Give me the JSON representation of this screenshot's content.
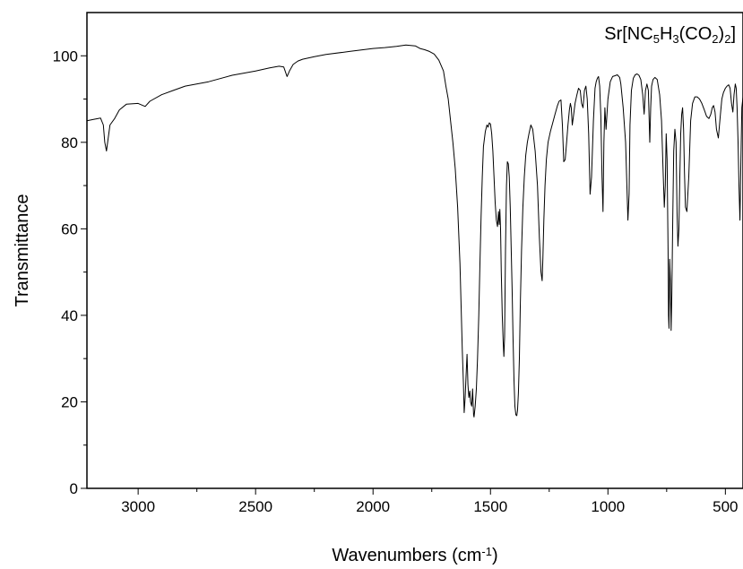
{
  "chart_data": {
    "type": "line",
    "title_parts": [
      {
        "t": "Sr[NC",
        "sub": false
      },
      {
        "t": "5",
        "sub": true
      },
      {
        "t": "H",
        "sub": false
      },
      {
        "t": "3",
        "sub": true
      },
      {
        "t": "(CO",
        "sub": false
      },
      {
        "t": "2",
        "sub": true
      },
      {
        "t": ")",
        "sub": false
      },
      {
        "t": "2",
        "sub": true
      },
      {
        "t": "]",
        "sub": false
      }
    ],
    "xlabel_parts": [
      {
        "t": "Wavenumbers (cm",
        "sup": false
      },
      {
        "t": "-1",
        "sup": true
      },
      {
        "t": ")",
        "sup": false
      }
    ],
    "ylabel": "Transmittance",
    "xlim": [
      3218,
      425
    ],
    "ylim": [
      0,
      110
    ],
    "x_ticks": [
      3000,
      2500,
      2000,
      1500,
      1000,
      500
    ],
    "x_tick_labels": [
      "3000",
      "2500",
      "2000",
      "1500",
      "1000",
      "500"
    ],
    "y_ticks": [
      0,
      20,
      40,
      60,
      80,
      100
    ],
    "y_tick_labels": [
      "0",
      "20",
      "40",
      "60",
      "80",
      "100"
    ],
    "series": [
      {
        "color": "#000000",
        "x": [
          3218,
          3190,
          3160,
          3148,
          3142,
          3135,
          3120,
          3100,
          3080,
          3050,
          3000,
          2970,
          2950,
          2900,
          2850,
          2800,
          2700,
          2600,
          2500,
          2440,
          2400,
          2380,
          2366,
          2355,
          2340,
          2320,
          2300,
          2250,
          2200,
          2100,
          2000,
          1950,
          1900,
          1860,
          1820,
          1800,
          1780,
          1760,
          1740,
          1720,
          1700,
          1690,
          1680,
          1670,
          1660,
          1650,
          1640,
          1630,
          1625,
          1620,
          1615,
          1612,
          1608,
          1604,
          1600,
          1596,
          1592,
          1588,
          1585,
          1580,
          1576,
          1572,
          1570,
          1565,
          1560,
          1555,
          1550,
          1545,
          1540,
          1535,
          1530,
          1522,
          1515,
          1510,
          1505,
          1500,
          1495,
          1490,
          1485,
          1480,
          1475,
          1470,
          1466,
          1463,
          1460,
          1457,
          1454,
          1450,
          1446,
          1443,
          1440,
          1436,
          1432,
          1428,
          1424,
          1420,
          1416,
          1412,
          1408,
          1404,
          1400,
          1396,
          1392,
          1388,
          1385,
          1381,
          1377,
          1373,
          1368,
          1362,
          1356,
          1350,
          1343,
          1336,
          1328,
          1320,
          1310,
          1300,
          1292,
          1285,
          1280,
          1277,
          1273,
          1268,
          1262,
          1255,
          1245,
          1235,
          1225,
          1215,
          1208,
          1200,
          1194,
          1188,
          1182,
          1176,
          1170,
          1164,
          1160,
          1156,
          1152,
          1148,
          1140,
          1132,
          1125,
          1118,
          1112,
          1106,
          1100,
          1094,
          1088,
          1082,
          1076,
          1070,
          1062,
          1055,
          1050,
          1045,
          1040,
          1035,
          1030,
          1025,
          1021,
          1017,
          1013,
          1008,
          1000,
          990,
          980,
          970,
          960,
          950,
          945,
          935,
          925,
          915,
          910,
          906,
          900,
          892,
          884,
          876,
          868,
          860,
          852,
          846,
          840,
          834,
          828,
          822,
          818,
          814,
          808,
          800,
          790,
          780,
          772,
          766,
          760,
          756,
          752,
          748,
          744,
          742,
          740,
          737,
          734,
          731,
          728,
          724,
          720,
          715,
          710,
          706,
          702,
          698,
          694,
          690,
          686,
          682,
          678,
          674,
          670,
          664,
          656,
          648,
          640,
          630,
          620,
          610,
          600,
          590,
          580,
          570,
          562,
          556,
          550,
          544,
          538,
          530,
          522,
          515,
          508,
          500,
          493,
          486,
          480,
          474,
          468,
          463,
          458,
          454,
          450,
          446,
          442,
          438,
          434,
          430,
          425
        ],
        "y": [
          85,
          85.3,
          85.6,
          84.0,
          80.0,
          78.0,
          84.0,
          85.5,
          87.5,
          88.8,
          89.0,
          88.3,
          89.5,
          91.0,
          92.0,
          93.0,
          94.0,
          95.5,
          96.5,
          97.2,
          97.6,
          97.4,
          95.2,
          96.6,
          98.0,
          98.8,
          99.2,
          99.8,
          100.3,
          101.0,
          101.7,
          101.9,
          102.2,
          102.5,
          102.3,
          101.7,
          101.4,
          101.0,
          100.4,
          99.0,
          96.5,
          93.0,
          90.0,
          85.0,
          80.0,
          74.0,
          65.0,
          52.0,
          42.0,
          32.0,
          24.0,
          17.5,
          21.0,
          26.0,
          31.0,
          24.0,
          21.0,
          22.5,
          20.0,
          19.0,
          23.0,
          17.0,
          16.5,
          19.0,
          23.0,
          30.0,
          40.0,
          52.0,
          63.0,
          72.0,
          79.0,
          82.5,
          84.0,
          83.5,
          84.5,
          84.2,
          82.0,
          78.0,
          72.0,
          66.0,
          62.0,
          60.5,
          64.0,
          61.0,
          64.5,
          60.0,
          50.0,
          40.0,
          34.0,
          30.5,
          35.0,
          55.0,
          70.0,
          75.5,
          75.0,
          72.0,
          65.0,
          56.0,
          46.0,
          35.0,
          25.0,
          19.0,
          17.0,
          16.8,
          18.0,
          22.0,
          30.0,
          42.0,
          55.0,
          65.0,
          72.0,
          77.0,
          80.0,
          82.0,
          84.0,
          83.0,
          78.0,
          70.0,
          58.0,
          50.0,
          48.0,
          53.0,
          62.0,
          70.0,
          76.0,
          80.0,
          82.5,
          84.5,
          86.5,
          88.5,
          89.5,
          89.8,
          84.0,
          75.5,
          76.0,
          80.0,
          84.0,
          87.5,
          89.0,
          88.0,
          84.0,
          85.5,
          89.0,
          91.0,
          92.5,
          92.0,
          89.0,
          88.0,
          92.0,
          93.0,
          90.0,
          82.0,
          68.0,
          72.0,
          85.0,
          92.5,
          94.0,
          94.8,
          95.2,
          93.0,
          86.0,
          72.0,
          64.0,
          80.0,
          88.0,
          83.0,
          90.0,
          94.0,
          95.2,
          95.4,
          95.6,
          95.0,
          93.5,
          88.0,
          80.0,
          62.0,
          68.0,
          84.0,
          92.0,
          94.8,
          95.6,
          95.8,
          95.5,
          94.5,
          91.0,
          86.5,
          92.0,
          93.5,
          92.0,
          80.0,
          88.0,
          93.0,
          94.5,
          95.0,
          94.5,
          91.0,
          85.0,
          75.0,
          65.0,
          70.0,
          82.0,
          76.0,
          55.0,
          40.0,
          37.0,
          53.0,
          48.0,
          36.5,
          45.0,
          62.0,
          78.0,
          83.0,
          80.0,
          64.0,
          56.0,
          60.0,
          72.0,
          82.0,
          86.5,
          88.0,
          83.0,
          73.0,
          65.0,
          64.0,
          72.0,
          85.0,
          89.0,
          90.5,
          90.5,
          90.0,
          89.0,
          87.5,
          86.0,
          85.5,
          86.5,
          88.0,
          88.5,
          87.0,
          83.0,
          81.0,
          86.0,
          90.0,
          91.5,
          92.5,
          93.0,
          93.3,
          92.5,
          89.0,
          87.0,
          91.0,
          93.5,
          92.5,
          88.0,
          80.0,
          70.0,
          62.0,
          75.0,
          88.0,
          90.5
        ]
      }
    ]
  }
}
